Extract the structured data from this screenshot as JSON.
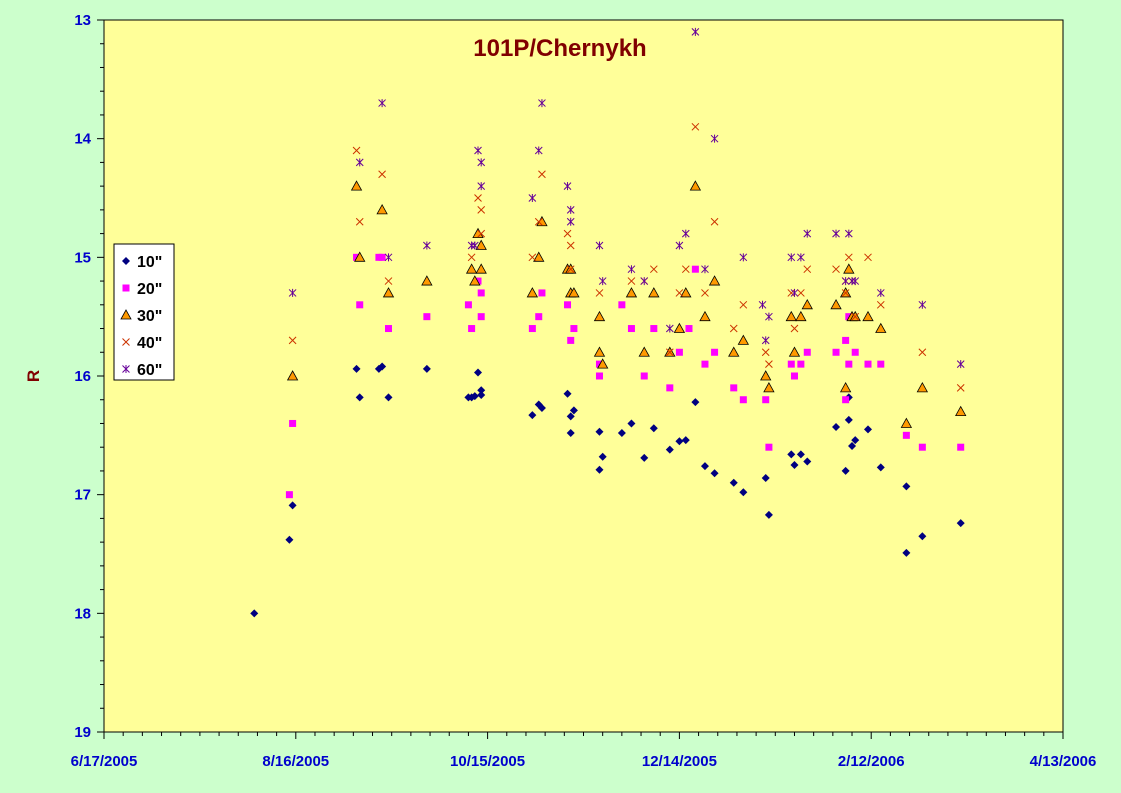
{
  "chart_data": {
    "type": "scatter",
    "title": "101P/Chernykh",
    "ylabel": "R",
    "xlabel": "",
    "x_axis": {
      "type": "date",
      "min": "2005-06-17",
      "max": "2006-04-13",
      "major_step_days": 60,
      "minor_step_days": 6,
      "tick_labels": [
        "6/17/2005",
        "8/16/2005",
        "10/15/2005",
        "12/14/2005",
        "2/12/2006",
        "4/13/2006"
      ]
    },
    "y_axis": {
      "reversed": true,
      "min": 13,
      "max": 19,
      "major_step": 1,
      "minor_step": 0.2,
      "tick_labels": [
        "13",
        "14",
        "15",
        "16",
        "17",
        "18",
        "19"
      ]
    },
    "grid": false,
    "legend_position": "left",
    "colors": {
      "outer_background": "#ccffcc",
      "plot_background": "#ffff99",
      "axis_text": "#0000cc",
      "title": "#800000"
    },
    "series": [
      {
        "name": "10\"",
        "marker": "diamond",
        "color": "#000080",
        "points": [
          [
            "2005-08-03",
            18.0
          ],
          [
            "2005-08-14",
            17.38
          ],
          [
            "2005-08-15",
            17.09
          ],
          [
            "2005-09-04",
            15.94
          ],
          [
            "2005-09-05",
            16.18
          ],
          [
            "2005-09-11",
            15.94
          ],
          [
            "2005-09-12",
            15.92
          ],
          [
            "2005-09-14",
            16.18
          ],
          [
            "2005-09-26",
            15.94
          ],
          [
            "2005-10-09",
            16.18
          ],
          [
            "2005-10-10",
            16.18
          ],
          [
            "2005-10-11",
            16.17
          ],
          [
            "2005-10-12",
            15.97
          ],
          [
            "2005-10-13",
            16.12
          ],
          [
            "2005-10-13",
            16.16
          ],
          [
            "2005-10-29",
            16.33
          ],
          [
            "2005-10-31",
            16.24
          ],
          [
            "2005-11-01",
            16.27
          ],
          [
            "2005-11-09",
            16.15
          ],
          [
            "2005-11-10",
            16.34
          ],
          [
            "2005-11-10",
            16.48
          ],
          [
            "2005-11-11",
            16.29
          ],
          [
            "2005-11-19",
            16.79
          ],
          [
            "2005-11-19",
            16.47
          ],
          [
            "2005-11-20",
            16.68
          ],
          [
            "2005-11-26",
            16.48
          ],
          [
            "2005-11-29",
            16.4
          ],
          [
            "2005-12-03",
            16.69
          ],
          [
            "2005-12-06",
            16.44
          ],
          [
            "2005-12-11",
            16.62
          ],
          [
            "2005-12-14",
            16.55
          ],
          [
            "2005-12-16",
            16.54
          ],
          [
            "2005-12-19",
            16.22
          ],
          [
            "2005-12-22",
            16.76
          ],
          [
            "2005-12-25",
            16.82
          ],
          [
            "2005-12-31",
            16.9
          ],
          [
            "2006-01-03",
            16.98
          ],
          [
            "2006-01-10",
            16.86
          ],
          [
            "2006-01-11",
            17.17
          ],
          [
            "2006-01-18",
            16.66
          ],
          [
            "2006-01-19",
            16.75
          ],
          [
            "2006-01-21",
            16.66
          ],
          [
            "2006-01-23",
            16.72
          ],
          [
            "2006-02-01",
            16.43
          ],
          [
            "2006-02-04",
            16.8
          ],
          [
            "2006-02-05",
            16.18
          ],
          [
            "2006-02-05",
            16.37
          ],
          [
            "2006-02-06",
            16.59
          ],
          [
            "2006-02-07",
            16.54
          ],
          [
            "2006-02-11",
            16.45
          ],
          [
            "2006-02-15",
            16.77
          ],
          [
            "2006-02-23",
            17.49
          ],
          [
            "2006-02-23",
            16.93
          ],
          [
            "2006-02-28",
            17.35
          ],
          [
            "2006-03-12",
            17.24
          ]
        ]
      },
      {
        "name": "20\"",
        "marker": "square",
        "color": "#ff00ff",
        "points": [
          [
            "2005-08-14",
            17.0
          ],
          [
            "2005-08-15",
            16.4
          ],
          [
            "2005-09-04",
            15.0
          ],
          [
            "2005-09-05",
            15.4
          ],
          [
            "2005-09-11",
            15.0
          ],
          [
            "2005-09-12",
            15.0
          ],
          [
            "2005-09-14",
            15.6
          ],
          [
            "2005-09-26",
            15.5
          ],
          [
            "2005-10-09",
            15.4
          ],
          [
            "2005-10-10",
            15.6
          ],
          [
            "2005-10-12",
            15.2
          ],
          [
            "2005-10-13",
            15.3
          ],
          [
            "2005-10-13",
            15.5
          ],
          [
            "2005-10-29",
            15.6
          ],
          [
            "2005-10-31",
            15.5
          ],
          [
            "2005-11-01",
            15.3
          ],
          [
            "2005-11-09",
            15.4
          ],
          [
            "2005-11-10",
            15.7
          ],
          [
            "2005-11-11",
            15.6
          ],
          [
            "2005-11-19",
            15.9
          ],
          [
            "2005-11-19",
            16.0
          ],
          [
            "2005-11-26",
            15.4
          ],
          [
            "2005-11-29",
            15.6
          ],
          [
            "2005-12-03",
            16.0
          ],
          [
            "2005-12-06",
            15.6
          ],
          [
            "2005-12-11",
            16.1
          ],
          [
            "2005-12-14",
            15.8
          ],
          [
            "2005-12-17",
            15.6
          ],
          [
            "2005-12-19",
            15.1
          ],
          [
            "2005-12-22",
            15.9
          ],
          [
            "2005-12-25",
            15.8
          ],
          [
            "2005-12-31",
            16.1
          ],
          [
            "2006-01-03",
            16.2
          ],
          [
            "2006-01-10",
            16.2
          ],
          [
            "2006-01-11",
            16.6
          ],
          [
            "2006-01-18",
            15.9
          ],
          [
            "2006-01-19",
            16.0
          ],
          [
            "2006-01-21",
            15.9
          ],
          [
            "2006-01-23",
            15.8
          ],
          [
            "2006-02-01",
            15.8
          ],
          [
            "2006-02-04",
            15.7
          ],
          [
            "2006-02-04",
            16.2
          ],
          [
            "2006-02-05",
            15.5
          ],
          [
            "2006-02-05",
            15.9
          ],
          [
            "2006-02-07",
            15.8
          ],
          [
            "2006-02-11",
            15.9
          ],
          [
            "2006-02-15",
            15.9
          ],
          [
            "2006-02-23",
            16.5
          ],
          [
            "2006-02-28",
            16.6
          ],
          [
            "2006-03-12",
            16.6
          ]
        ]
      },
      {
        "name": "30\"",
        "marker": "triangle",
        "color": "#ff9900",
        "points": [
          [
            "2005-08-15",
            16.0
          ],
          [
            "2005-09-04",
            14.4
          ],
          [
            "2005-09-05",
            15.0
          ],
          [
            "2005-09-12",
            14.6
          ],
          [
            "2005-09-14",
            15.3
          ],
          [
            "2005-09-26",
            15.2
          ],
          [
            "2005-10-10",
            15.1
          ],
          [
            "2005-10-11",
            15.2
          ],
          [
            "2005-10-12",
            14.8
          ],
          [
            "2005-10-13",
            14.9
          ],
          [
            "2005-10-13",
            15.1
          ],
          [
            "2005-10-29",
            15.3
          ],
          [
            "2005-10-31",
            15.0
          ],
          [
            "2005-11-01",
            14.7
          ],
          [
            "2005-11-09",
            15.1
          ],
          [
            "2005-11-10",
            15.1
          ],
          [
            "2005-11-10",
            15.3
          ],
          [
            "2005-11-11",
            15.3
          ],
          [
            "2005-11-19",
            15.5
          ],
          [
            "2005-11-19",
            15.8
          ],
          [
            "2005-11-20",
            15.9
          ],
          [
            "2005-11-29",
            15.3
          ],
          [
            "2005-12-03",
            15.8
          ],
          [
            "2005-12-06",
            15.3
          ],
          [
            "2005-12-11",
            15.8
          ],
          [
            "2005-12-14",
            15.6
          ],
          [
            "2005-12-16",
            15.3
          ],
          [
            "2005-12-19",
            14.4
          ],
          [
            "2005-12-22",
            15.5
          ],
          [
            "2005-12-25",
            15.2
          ],
          [
            "2005-12-31",
            15.8
          ],
          [
            "2006-01-03",
            15.7
          ],
          [
            "2006-01-10",
            16.0
          ],
          [
            "2006-01-11",
            16.1
          ],
          [
            "2006-01-18",
            15.5
          ],
          [
            "2006-01-19",
            15.8
          ],
          [
            "2006-01-21",
            15.5
          ],
          [
            "2006-01-23",
            15.4
          ],
          [
            "2006-02-01",
            15.4
          ],
          [
            "2006-02-04",
            15.3
          ],
          [
            "2006-02-04",
            16.1
          ],
          [
            "2006-02-05",
            15.1
          ],
          [
            "2006-02-06",
            15.5
          ],
          [
            "2006-02-07",
            15.5
          ],
          [
            "2006-02-11",
            15.5
          ],
          [
            "2006-02-15",
            15.6
          ],
          [
            "2006-02-23",
            16.4
          ],
          [
            "2006-02-28",
            16.1
          ],
          [
            "2006-03-12",
            16.3
          ]
        ]
      },
      {
        "name": "40\"",
        "marker": "x",
        "color": "#cc3300",
        "points": [
          [
            "2005-08-15",
            15.7
          ],
          [
            "2005-09-04",
            14.1
          ],
          [
            "2005-09-05",
            14.7
          ],
          [
            "2005-09-12",
            14.3
          ],
          [
            "2005-09-14",
            15.2
          ],
          [
            "2005-10-10",
            15.0
          ],
          [
            "2005-10-12",
            14.5
          ],
          [
            "2005-10-13",
            14.6
          ],
          [
            "2005-10-13",
            14.8
          ],
          [
            "2005-10-29",
            15.0
          ],
          [
            "2005-10-31",
            14.7
          ],
          [
            "2005-11-01",
            14.3
          ],
          [
            "2005-11-09",
            14.8
          ],
          [
            "2005-11-10",
            14.9
          ],
          [
            "2005-11-10",
            15.1
          ],
          [
            "2005-11-19",
            15.3
          ],
          [
            "2005-11-29",
            15.2
          ],
          [
            "2005-12-03",
            15.2
          ],
          [
            "2005-12-06",
            15.1
          ],
          [
            "2005-12-11",
            15.8
          ],
          [
            "2005-12-14",
            15.3
          ],
          [
            "2005-12-16",
            15.1
          ],
          [
            "2005-12-19",
            13.9
          ],
          [
            "2005-12-22",
            15.3
          ],
          [
            "2005-12-25",
            14.7
          ],
          [
            "2005-12-31",
            15.6
          ],
          [
            "2006-01-03",
            15.4
          ],
          [
            "2006-01-10",
            15.8
          ],
          [
            "2006-01-11",
            15.9
          ],
          [
            "2006-01-18",
            15.3
          ],
          [
            "2006-01-19",
            15.6
          ],
          [
            "2006-01-21",
            15.3
          ],
          [
            "2006-01-23",
            15.1
          ],
          [
            "2006-02-01",
            15.1
          ],
          [
            "2006-02-04",
            15.2
          ],
          [
            "2006-02-04",
            15.3
          ],
          [
            "2006-02-05",
            15.0
          ],
          [
            "2006-02-06",
            15.2
          ],
          [
            "2006-02-07",
            15.5
          ],
          [
            "2006-02-11",
            15.0
          ],
          [
            "2006-02-15",
            15.4
          ],
          [
            "2006-02-28",
            15.8
          ],
          [
            "2006-03-12",
            16.1
          ]
        ]
      },
      {
        "name": "60\"",
        "marker": "star",
        "color": "#660099",
        "points": [
          [
            "2005-08-15",
            15.3
          ],
          [
            "2005-09-05",
            14.2
          ],
          [
            "2005-09-12",
            13.7
          ],
          [
            "2005-09-14",
            15.0
          ],
          [
            "2005-09-26",
            14.9
          ],
          [
            "2005-10-10",
            14.9
          ],
          [
            "2005-10-11",
            14.9
          ],
          [
            "2005-10-12",
            14.1
          ],
          [
            "2005-10-13",
            14.2
          ],
          [
            "2005-10-13",
            14.4
          ],
          [
            "2005-10-29",
            14.5
          ],
          [
            "2005-10-31",
            14.1
          ],
          [
            "2005-11-01",
            13.7
          ],
          [
            "2005-11-09",
            14.4
          ],
          [
            "2005-11-10",
            14.6
          ],
          [
            "2005-11-10",
            14.7
          ],
          [
            "2005-11-19",
            14.9
          ],
          [
            "2005-11-20",
            15.2
          ],
          [
            "2005-11-29",
            15.1
          ],
          [
            "2005-12-03",
            15.2
          ],
          [
            "2005-12-11",
            15.6
          ],
          [
            "2005-12-14",
            14.9
          ],
          [
            "2005-12-16",
            14.8
          ],
          [
            "2005-12-19",
            13.1
          ],
          [
            "2005-12-22",
            15.1
          ],
          [
            "2005-12-25",
            14.0
          ],
          [
            "2006-01-03",
            15.0
          ],
          [
            "2006-01-09",
            15.4
          ],
          [
            "2006-01-11",
            15.5
          ],
          [
            "2006-01-10",
            15.7
          ],
          [
            "2006-01-18",
            15.0
          ],
          [
            "2006-01-19",
            15.3
          ],
          [
            "2006-01-21",
            15.0
          ],
          [
            "2006-01-23",
            14.8
          ],
          [
            "2006-02-01",
            14.8
          ],
          [
            "2006-02-04",
            15.2
          ],
          [
            "2006-02-05",
            14.8
          ],
          [
            "2006-02-06",
            15.2
          ],
          [
            "2006-02-07",
            15.2
          ],
          [
            "2006-02-15",
            15.3
          ],
          [
            "2006-02-28",
            15.4
          ],
          [
            "2006-03-12",
            15.9
          ]
        ]
      }
    ]
  }
}
